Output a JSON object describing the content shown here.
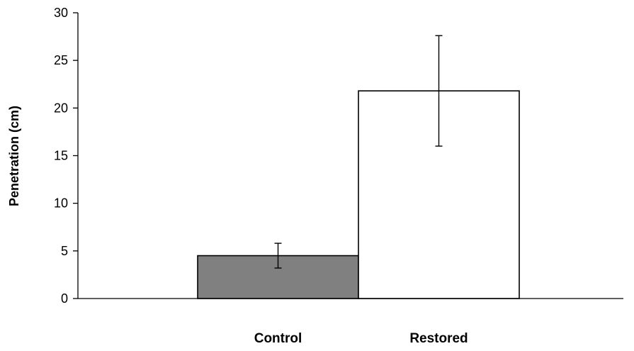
{
  "chart_data": {
    "type": "bar",
    "title": "",
    "xlabel": "",
    "ylabel": "Penetration (cm)",
    "ylim": [
      0,
      30
    ],
    "yticks": [
      "0",
      "5",
      "10",
      "15",
      "20",
      "25",
      "30"
    ],
    "grid": false,
    "categories": [
      "Control",
      "Restored"
    ],
    "values": [
      4.5,
      21.8
    ],
    "errors": [
      1.3,
      5.8
    ],
    "colors": [
      "#808080",
      "#ffffff"
    ],
    "edge_color": "#000000"
  }
}
